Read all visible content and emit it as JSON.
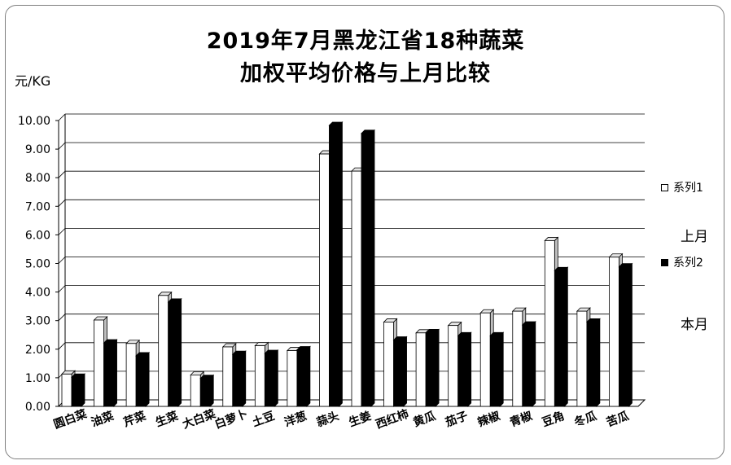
{
  "chart_data": {
    "type": "bar",
    "title_line1": "2019年7月黑龙江省18种蔬菜",
    "title_line2": "加权平均价格与上月比较",
    "ylabel": "元/KG",
    "ylim": [
      0,
      10
    ],
    "yticks": [
      "0.00",
      "1.00",
      "2.00",
      "3.00",
      "4.00",
      "5.00",
      "6.00",
      "7.00",
      "8.00",
      "9.00",
      "10.00"
    ],
    "grid": true,
    "legend_position": "right",
    "categories": [
      "圆白菜",
      "油菜",
      "芹菜",
      "生菜",
      "大白菜",
      "白萝卜",
      "土豆",
      "洋葱",
      "蒜头",
      "生姜",
      "西红柿",
      "黄瓜",
      "茄子",
      "辣椒",
      "青椒",
      "豆角",
      "冬瓜",
      "苦瓜"
    ],
    "series": [
      {
        "name": "系列1",
        "color": "#ffffff",
        "values": [
          1.13,
          3.02,
          2.2,
          3.88,
          1.1,
          2.08,
          2.12,
          1.95,
          8.83,
          8.23,
          2.95,
          2.57,
          2.83,
          3.27,
          3.33,
          5.8,
          3.33,
          5.22
        ]
      },
      {
        "name": "系列2",
        "color": "#000000",
        "values": [
          1.02,
          2.22,
          1.77,
          3.65,
          0.98,
          1.82,
          1.85,
          1.98,
          9.83,
          9.55,
          2.32,
          2.58,
          2.47,
          2.47,
          2.85,
          4.75,
          2.95,
          4.88
        ]
      }
    ],
    "legend_notes": [
      "上月",
      "本月"
    ]
  }
}
